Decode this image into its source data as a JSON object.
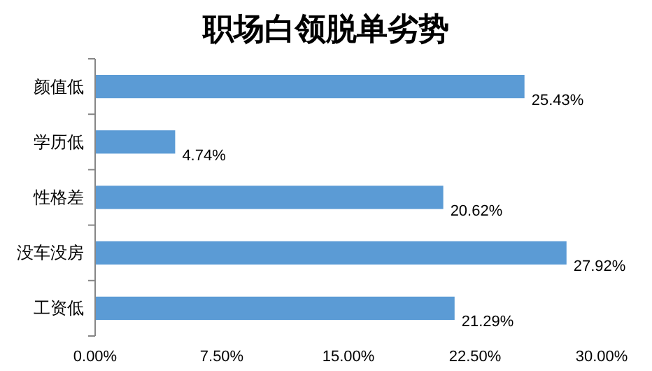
{
  "chart_data": {
    "type": "bar",
    "orientation": "horizontal",
    "title": "职场白领脱单劣势",
    "categories": [
      "颜值低",
      "学历低",
      "性格差",
      "没车没房",
      "工资低"
    ],
    "values": [
      25.43,
      4.74,
      20.62,
      27.92,
      21.29
    ],
    "value_labels": [
      "25.43%",
      "4.74%",
      "20.62%",
      "27.92%",
      "21.29%"
    ],
    "color": "#5b9bd5",
    "xlim": [
      0,
      30
    ],
    "xticks": [
      {
        "value": 0,
        "label": "0.00%"
      },
      {
        "value": 7.5,
        "label": "7.50%"
      },
      {
        "value": 15,
        "label": "15.00%"
      },
      {
        "value": 22.5,
        "label": "22.50%"
      },
      {
        "value": 30,
        "label": "30.00%"
      }
    ],
    "grid": false
  }
}
